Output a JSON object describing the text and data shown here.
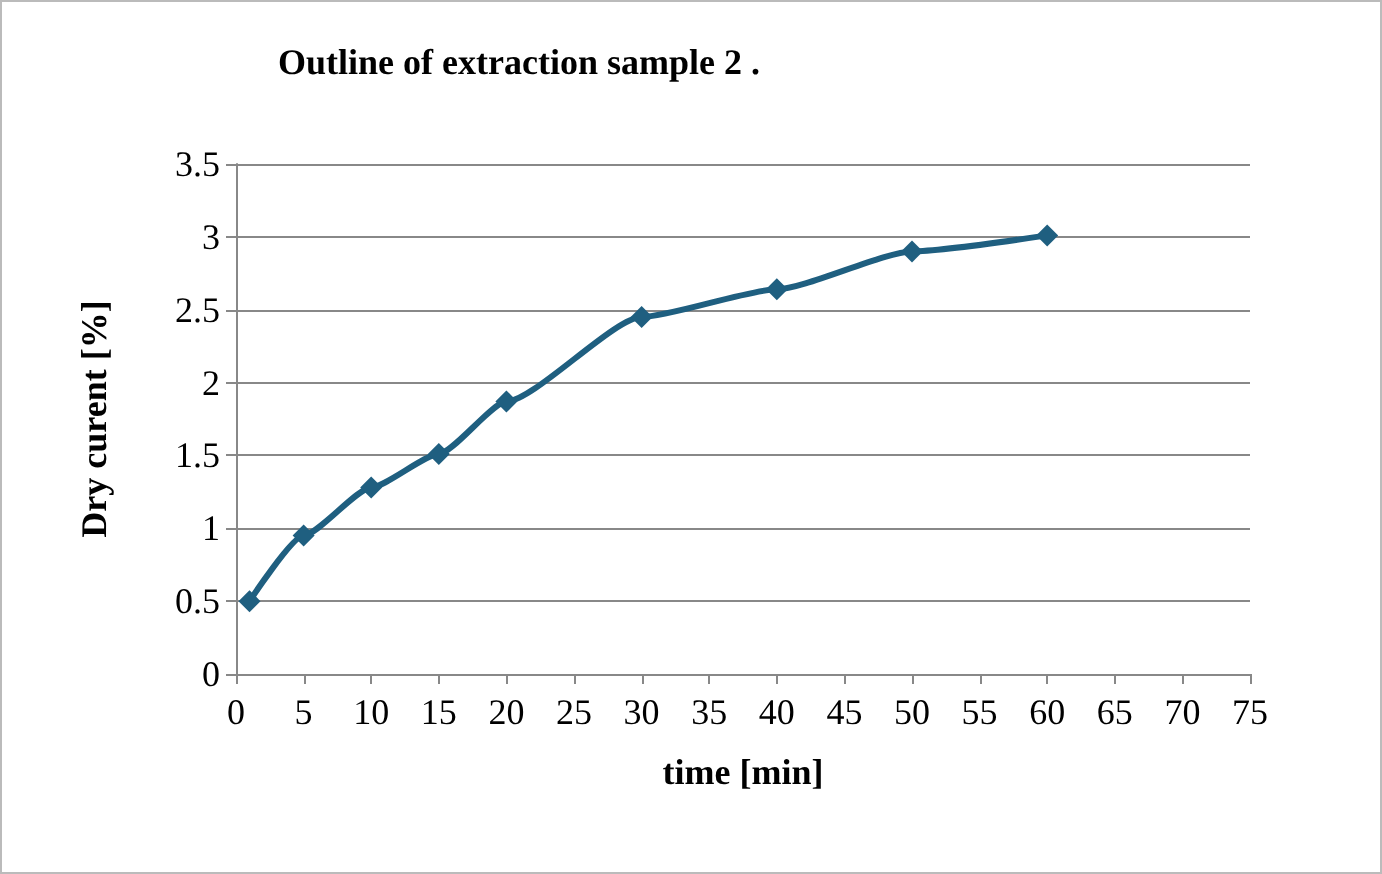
{
  "chart_data": {
    "type": "line",
    "title": "Outline of extraction sample 2 .",
    "xlabel": "time [min]",
    "ylabel": "Dry curent [%]",
    "x": [
      1,
      5,
      10,
      15,
      20,
      30,
      40,
      50,
      60
    ],
    "series": [
      {
        "color": "#1f5f80",
        "values": [
          0.5,
          0.95,
          1.28,
          1.51,
          1.87,
          2.45,
          2.64,
          2.9,
          3.01
        ]
      }
    ],
    "xlim": [
      0,
      75
    ],
    "xticks": [
      0,
      5,
      10,
      15,
      20,
      25,
      30,
      35,
      40,
      45,
      50,
      55,
      60,
      65,
      70,
      75
    ],
    "ylim": [
      0,
      3.5
    ],
    "yticks": [
      0,
      0.5,
      1,
      1.5,
      2,
      2.5,
      3,
      3.5
    ],
    "grid": "y",
    "marker": "diamond",
    "line_style": "solid"
  }
}
